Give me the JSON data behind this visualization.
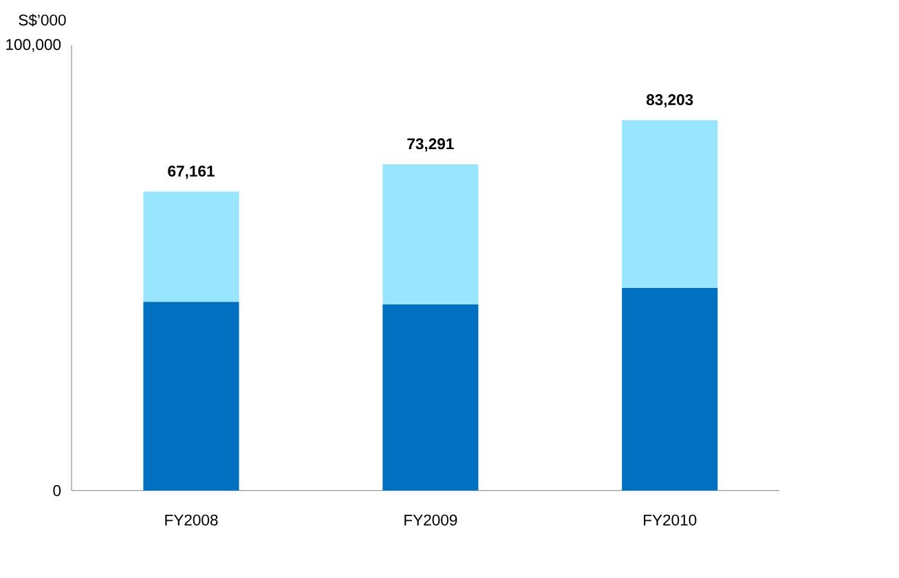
{
  "chart_data": {
    "type": "bar",
    "stacked": true,
    "ylabel": "S$’000",
    "categories": [
      "FY2008",
      "FY2009",
      "FY2010"
    ],
    "series": [
      {
        "color": "#0070c0",
        "values": [
          42400,
          41800,
          45500
        ]
      },
      {
        "color": "#99e5fd",
        "values": [
          24761,
          31491,
          37703
        ]
      }
    ],
    "totals": [
      "67,161",
      "73,291",
      "83,203"
    ],
    "ylim": [
      0,
      100000
    ],
    "yticks": [
      0,
      {
        "value": 100000,
        "label": "100,000"
      }
    ],
    "grid": false
  }
}
